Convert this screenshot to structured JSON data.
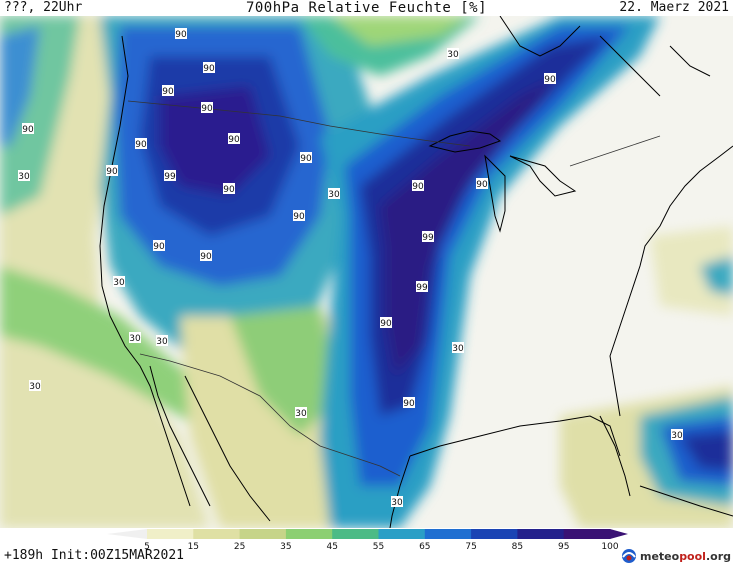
{
  "header": {
    "left": "???, 22Uhr",
    "title": "700hPa Relative Feuchte [%]",
    "right": "22. Maerz 2021"
  },
  "footer": {
    "left": "+189h Init:00Z15MAR2021",
    "brand_main": "meteo",
    "brand_accent": "pool",
    "brand_suffix": ".org"
  },
  "legend": {
    "ticks": [
      "5",
      "15",
      "25",
      "35",
      "45",
      "55",
      "65",
      "75",
      "85",
      "95",
      "100"
    ],
    "colors": [
      "#f2f2ec",
      "#f0efc8",
      "#dfe0a4",
      "#c6d489",
      "#8ccf72",
      "#4cbb86",
      "#2a9fc6",
      "#1f6fd1",
      "#1a44b4",
      "#24218c",
      "#3a1274"
    ]
  },
  "contour_labels": [
    "90",
    "30",
    "99"
  ],
  "colors": {
    "background": "#ffffff",
    "land_low": "#f4f4ee",
    "humidity_high": "#24218c"
  }
}
